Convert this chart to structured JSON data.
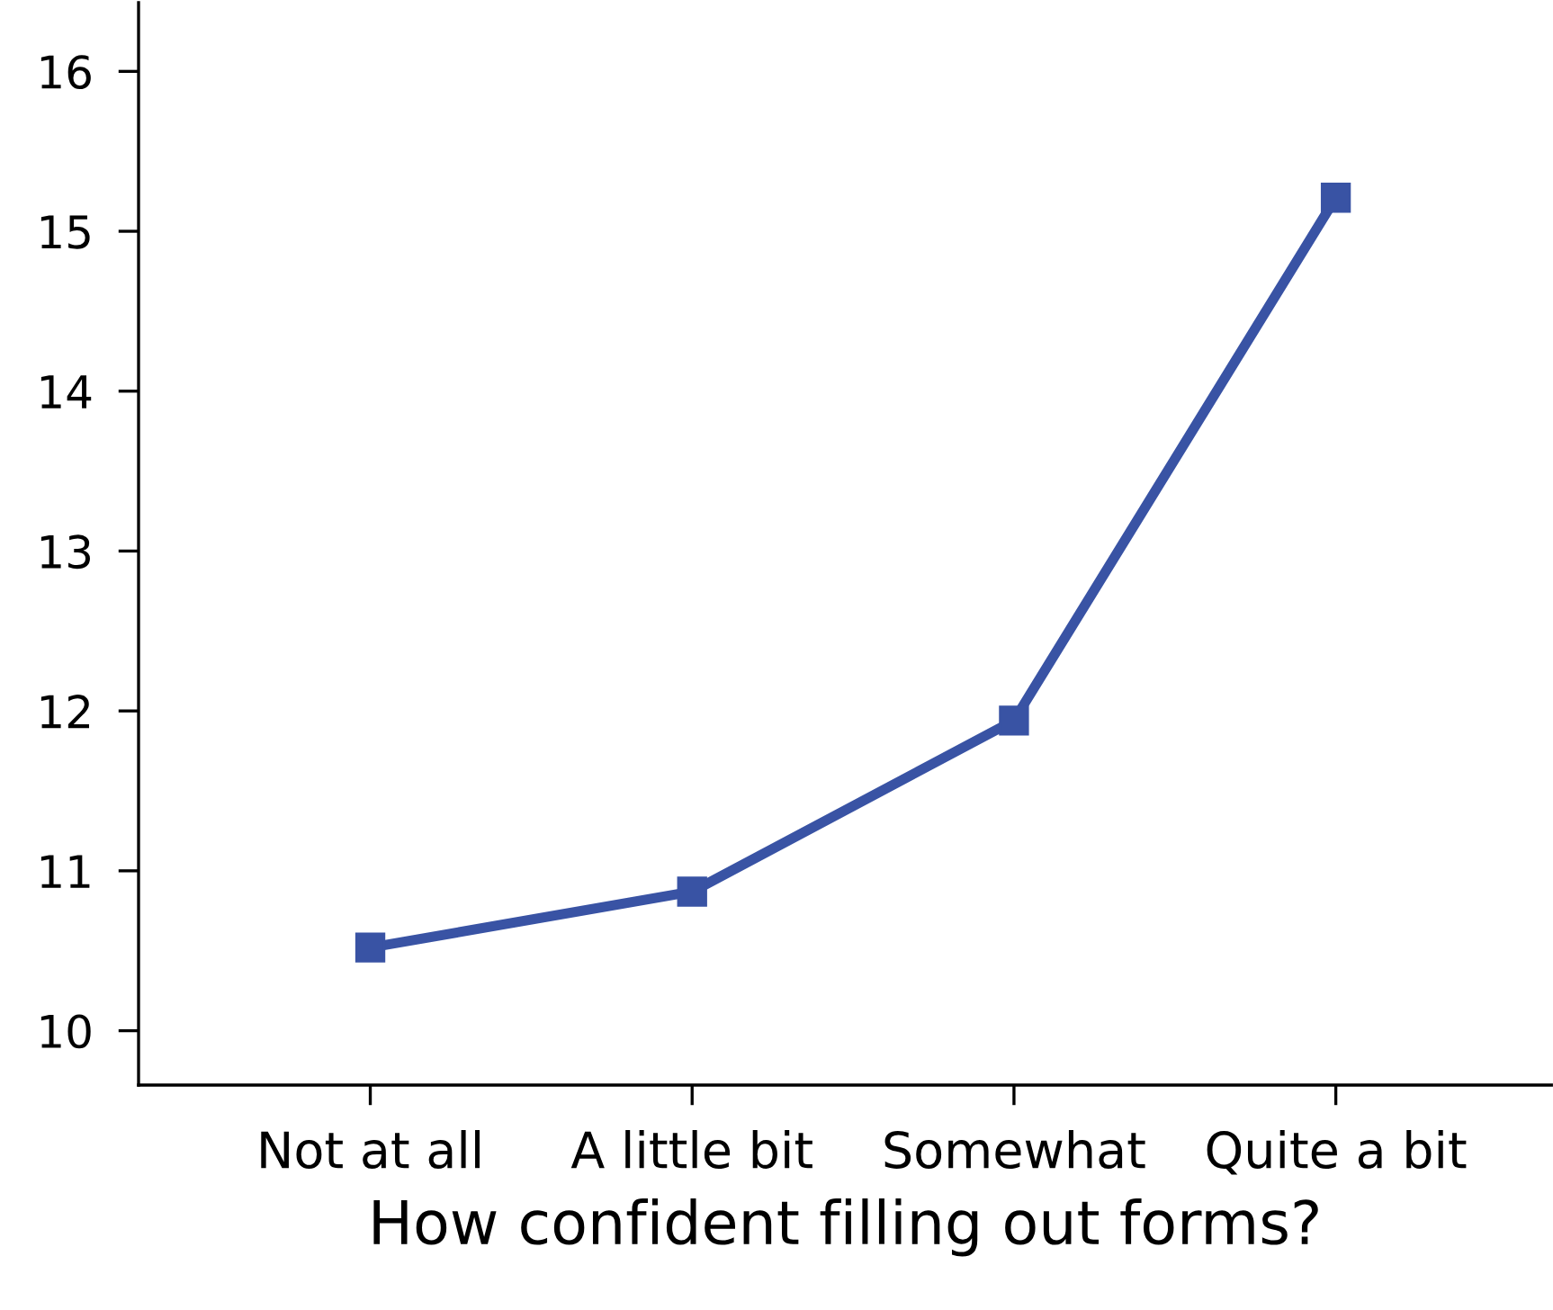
{
  "chart_data": {
    "type": "line",
    "xlabel": "How confident filling out forms?",
    "categories": [
      "Not at all",
      "A little bit",
      "Somewhat",
      "Quite a bit"
    ],
    "series": [
      {
        "color": "#3953a4",
        "values": [
          10.52,
          10.87,
          11.94,
          15.21
        ]
      }
    ],
    "ylim": [
      9.66,
      16.43
    ],
    "yticks": [
      10,
      11,
      12,
      13,
      14,
      15,
      16
    ],
    "marker": "square",
    "line_style": "solid",
    "grid": false,
    "legend": false
  }
}
